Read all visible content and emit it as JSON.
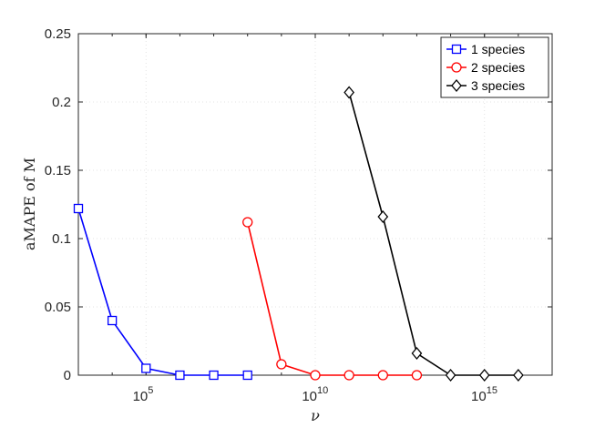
{
  "chart_data": {
    "type": "line",
    "xlabel": "ν",
    "ylabel": "aMAPE of M",
    "x_scale": "log10",
    "xlim": [
      1000,
      100000000000000000
    ],
    "ylim": [
      0,
      0.25
    ],
    "x_ticks": [
      {
        "value": 100000,
        "base": "10",
        "exp": "5"
      },
      {
        "value": 10000000000,
        "base": "10",
        "exp": "10"
      },
      {
        "value": 1000000000000000,
        "base": "10",
        "exp": "15"
      }
    ],
    "y_ticks": [
      {
        "value": 0,
        "label": "0"
      },
      {
        "value": 0.05,
        "label": "0.05"
      },
      {
        "value": 0.1,
        "label": "0.1"
      },
      {
        "value": 0.15,
        "label": "0.15"
      },
      {
        "value": 0.2,
        "label": "0.2"
      },
      {
        "value": 0.25,
        "label": "0.25"
      }
    ],
    "grid": true,
    "legend_position": "top-right",
    "series": [
      {
        "name": "1 species",
        "color": "#0000ff",
        "marker": "square",
        "x": [
          1000,
          10000,
          100000,
          1000000,
          10000000,
          100000000
        ],
        "y": [
          0.122,
          0.04,
          0.005,
          0.0,
          0.0,
          0.0
        ]
      },
      {
        "name": "2 species",
        "color": "#ff0000",
        "marker": "circle",
        "x": [
          100000000,
          1000000000,
          10000000000,
          100000000000,
          1000000000000,
          10000000000000
        ],
        "y": [
          0.112,
          0.008,
          0.0,
          0.0,
          0.0,
          0.0
        ]
      },
      {
        "name": "3 species",
        "color": "#000000",
        "marker": "diamond",
        "x": [
          100000000000,
          1000000000000,
          10000000000000,
          100000000000000,
          1000000000000000,
          10000000000000000
        ],
        "y": [
          0.207,
          0.116,
          0.016,
          0.0,
          0.0,
          0.0
        ]
      }
    ]
  }
}
